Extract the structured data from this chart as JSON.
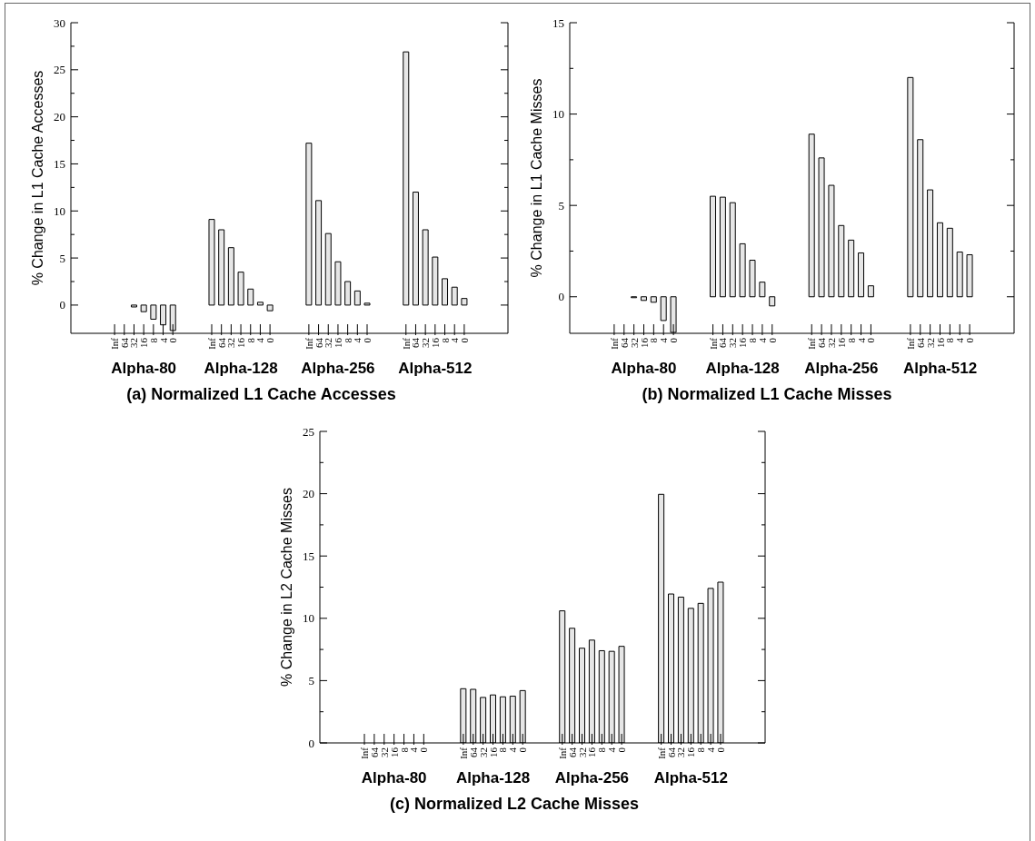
{
  "chart_data": [
    {
      "type": "bar",
      "title": "(a) Normalized L1 Cache Accesses",
      "ylabel": "% Change in L1 Cache Accesses",
      "ylim": [
        -3,
        30
      ],
      "yticks": [
        0,
        {
          "value": 2.5,
          "label": null
        },
        5,
        {
          "value": 7.5,
          "label": null
        },
        10,
        {
          "value": 12.5,
          "label": null
        },
        15,
        {
          "value": 17.5,
          "label": null
        },
        20,
        {
          "value": 22.5,
          "label": null
        },
        25,
        {
          "value": 27.5,
          "label": null
        },
        30
      ],
      "categories": [
        null,
        null,
        null,
        null,
        "Inf",
        "64",
        "32",
        "16",
        "8",
        "4",
        "0",
        null,
        null,
        null,
        "Inf",
        "64",
        "32",
        "16",
        "8",
        "4",
        "0",
        null,
        null,
        null,
        "Inf",
        "64",
        "32",
        "16",
        "8",
        "4",
        "0",
        null,
        null,
        null,
        "Inf",
        "64",
        "32",
        "16",
        "8",
        "4",
        "0",
        null,
        null,
        null,
        null
      ],
      "color": "#e6e6e6",
      "values": [
        null,
        null,
        null,
        null,
        0,
        0,
        -0.2,
        -0.7,
        -1.5,
        -2.1,
        -2.7,
        null,
        null,
        null,
        9.1,
        8.0,
        6.1,
        3.5,
        1.7,
        0.3,
        -0.6,
        null,
        null,
        null,
        17.2,
        11.1,
        7.6,
        4.6,
        2.5,
        1.5,
        0.2,
        null,
        null,
        null,
        26.9,
        12.0,
        8.0,
        5.1,
        2.8,
        1.9,
        0.7,
        null,
        null,
        null,
        null
      ],
      "annotations": [
        "Alpha-80",
        "Alpha-128",
        "Alpha-256",
        "Alpha-512"
      ]
    },
    {
      "type": "bar",
      "title": "(b) Normalized L1 Cache Misses",
      "ylabel": "% Change in L1 Cache Misses",
      "ylim": [
        -2,
        15
      ],
      "yticks": [
        0,
        {
          "value": 2.5,
          "label": null
        },
        5,
        {
          "value": 7.5,
          "label": null
        },
        10,
        {
          "value": 12.5,
          "label": null
        },
        15
      ],
      "categories": [
        null,
        null,
        null,
        null,
        "Inf",
        "64",
        "32",
        "16",
        "8",
        "4",
        "0",
        null,
        null,
        null,
        "Inf",
        "64",
        "32",
        "16",
        "8",
        "4",
        "0",
        null,
        null,
        null,
        "Inf",
        "64",
        "32",
        "16",
        "8",
        "4",
        "0",
        null,
        null,
        null,
        "Inf",
        "64",
        "32",
        "16",
        "8",
        "4",
        "0",
        null,
        null,
        null,
        null
      ],
      "color": "#e6e6e6",
      "values": [
        null,
        null,
        null,
        null,
        0,
        0,
        -0.05,
        -0.2,
        -0.3,
        -1.3,
        -1.95,
        null,
        null,
        null,
        5.5,
        5.45,
        5.15,
        2.9,
        2.0,
        0.8,
        -0.5,
        null,
        null,
        null,
        8.9,
        7.6,
        6.1,
        3.9,
        3.1,
        2.4,
        0.6,
        null,
        null,
        null,
        12.0,
        8.6,
        5.85,
        4.05,
        3.75,
        2.45,
        2.3,
        null,
        null,
        null,
        null
      ],
      "annotations": [
        "Alpha-80",
        "Alpha-128",
        "Alpha-256",
        "Alpha-512"
      ]
    },
    {
      "type": "bar",
      "title": "(c) Normalized L2 Cache Misses",
      "ylabel": "% Change in L2 Cache Misses",
      "ylim": [
        0,
        25
      ],
      "yticks": [
        0,
        {
          "value": 2.5,
          "label": null
        },
        5,
        {
          "value": 7.5,
          "label": null
        },
        10,
        {
          "value": 12.5,
          "label": null
        },
        15,
        {
          "value": 17.5,
          "label": null
        },
        20,
        {
          "value": 22.5,
          "label": null
        },
        25
      ],
      "categories": [
        null,
        null,
        null,
        null,
        "Inf",
        "64",
        "32",
        "16",
        "8",
        "4",
        "0",
        null,
        null,
        null,
        "Inf",
        "64",
        "32",
        "16",
        "8",
        "4",
        "0",
        null,
        null,
        null,
        "Inf",
        "64",
        "32",
        "16",
        "8",
        "4",
        "0",
        null,
        null,
        null,
        "Inf",
        "64",
        "32",
        "16",
        "8",
        "4",
        "0",
        null,
        null,
        null,
        null
      ],
      "color": "#e6e6e6",
      "values": [
        null,
        null,
        null,
        null,
        0,
        0,
        0,
        0,
        0,
        0,
        0,
        null,
        null,
        null,
        4.35,
        4.3,
        3.65,
        3.85,
        3.7,
        3.75,
        4.2,
        null,
        null,
        null,
        10.6,
        9.2,
        7.6,
        8.25,
        7.4,
        7.35,
        7.75,
        null,
        null,
        null,
        19.95,
        11.95,
        11.7,
        10.8,
        11.2,
        12.4,
        12.9,
        null,
        null,
        null,
        null
      ],
      "annotations": [
        "Alpha-80",
        "Alpha-128",
        "Alpha-256",
        "Alpha-512"
      ]
    }
  ]
}
